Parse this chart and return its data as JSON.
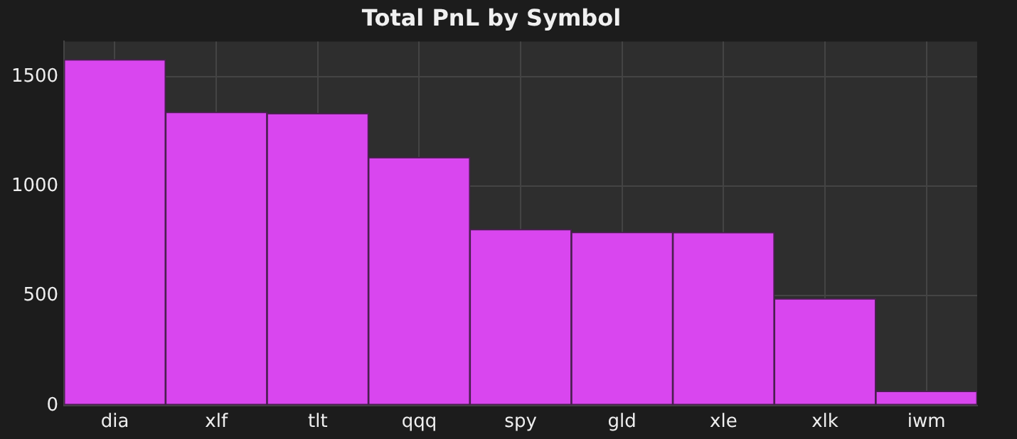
{
  "chart_data": {
    "type": "bar",
    "title": "Total PnL by Symbol",
    "categories": [
      "dia",
      "xlf",
      "tlt",
      "qqq",
      "spy",
      "gld",
      "xle",
      "xlk",
      "iwm"
    ],
    "values": [
      1577,
      1338,
      1332,
      1131,
      803,
      790,
      789,
      487,
      65
    ],
    "color": "#d946ef",
    "ylim": [
      0,
      1660
    ],
    "yticks": [
      0,
      500,
      1000,
      1500
    ],
    "grid": true
  }
}
